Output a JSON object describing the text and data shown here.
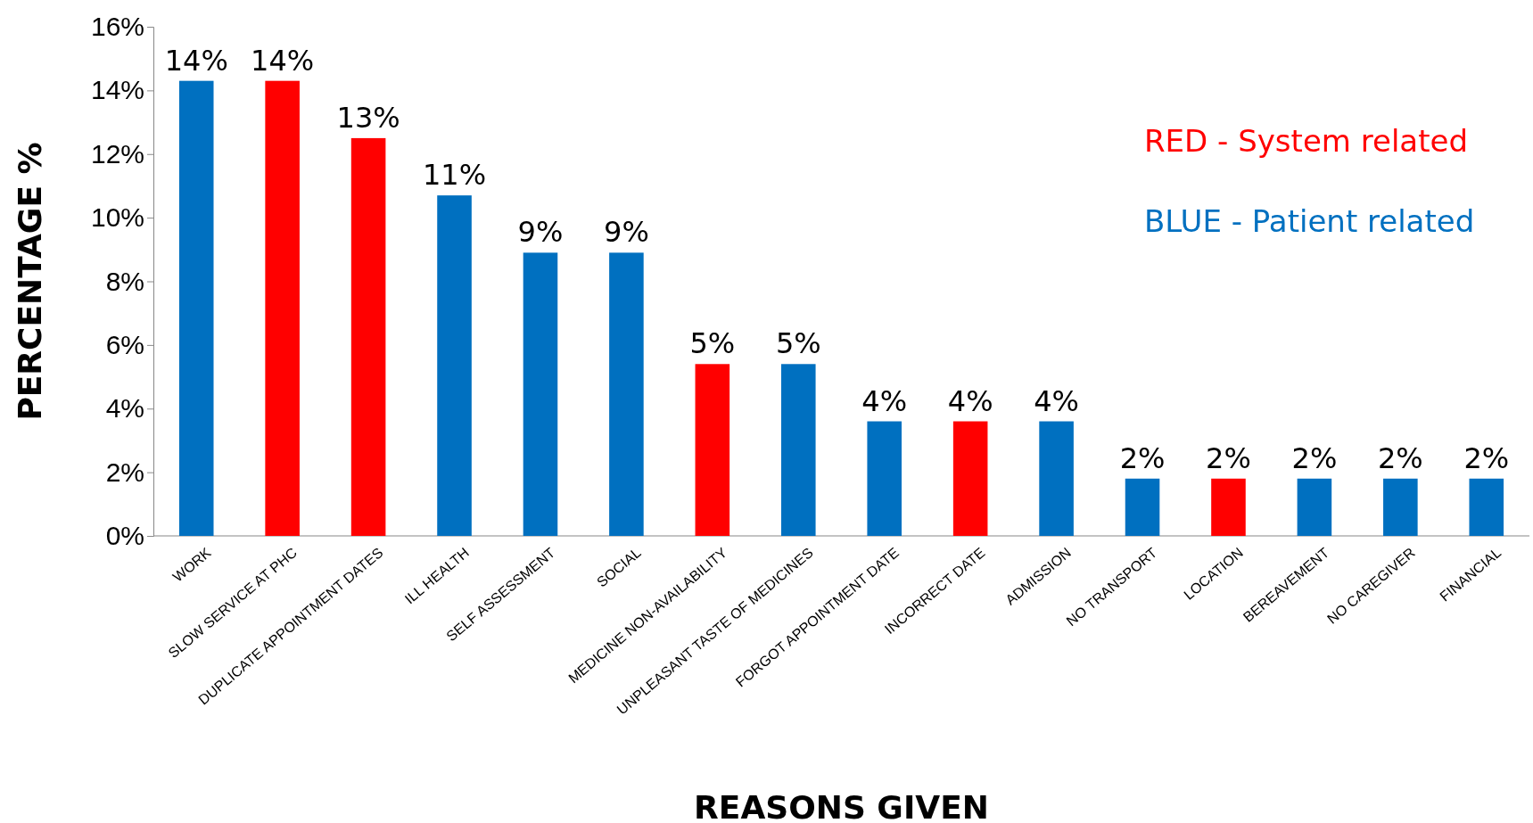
{
  "chart_data": {
    "type": "bar",
    "xlabel": "REASONS GIVEN",
    "ylabel": "PERCENTAGE %",
    "categories": [
      "WORK",
      "SLOW SERVICE AT PHC",
      "DUPLICATE APPOINTMENT DATES",
      "ILL HEALTH",
      "SELF ASSESSMENT",
      "SOCIAL",
      "MEDICINE NON-AVAILABILITY",
      "UNPLEASANT TASTE OF MEDICINES",
      "FORGOT APPOINTMENT DATE",
      "INCORRECT DATE",
      "ADMISSION",
      "NO TRANSPORT",
      "LOCATION",
      "BEREAVEMENT",
      "NO CAREGIVER",
      "FINANCIAL"
    ],
    "stacked": true,
    "series": [
      {
        "name": "RED - System related",
        "color": "#ff0000",
        "values": [
          null,
          14.3,
          12.5,
          null,
          null,
          null,
          5.4,
          null,
          null,
          3.6,
          null,
          null,
          1.8,
          null,
          null,
          null
        ],
        "value_labels": [
          null,
          "14%",
          "13%",
          null,
          null,
          null,
          "5%",
          null,
          null,
          "4%",
          null,
          null,
          "2%",
          null,
          null,
          null
        ]
      },
      {
        "name": "BLUE - Patient related",
        "color": "#0070c0",
        "values": [
          14.3,
          null,
          null,
          10.7,
          8.9,
          8.9,
          null,
          5.4,
          3.6,
          null,
          3.6,
          1.8,
          null,
          1.8,
          1.8,
          1.8
        ],
        "value_labels": [
          "14%",
          null,
          null,
          "11%",
          "9%",
          "9%",
          null,
          "5%",
          "4%",
          null,
          "4%",
          "2%",
          null,
          "2%",
          "2%",
          "2%"
        ]
      }
    ],
    "ylim": [
      0,
      16
    ],
    "yticks": [
      {
        "value": 0,
        "label": "0%"
      },
      {
        "value": 2,
        "label": "2%"
      },
      {
        "value": 4,
        "label": "4%"
      },
      {
        "value": 6,
        "label": "6%"
      },
      {
        "value": 8,
        "label": "8%"
      },
      {
        "value": 10,
        "label": "10%"
      },
      {
        "value": 12,
        "label": "12%"
      },
      {
        "value": 14,
        "label": "14%"
      },
      {
        "value": 16,
        "label": "16%"
      }
    ],
    "grid": false,
    "legend": "top right"
  }
}
